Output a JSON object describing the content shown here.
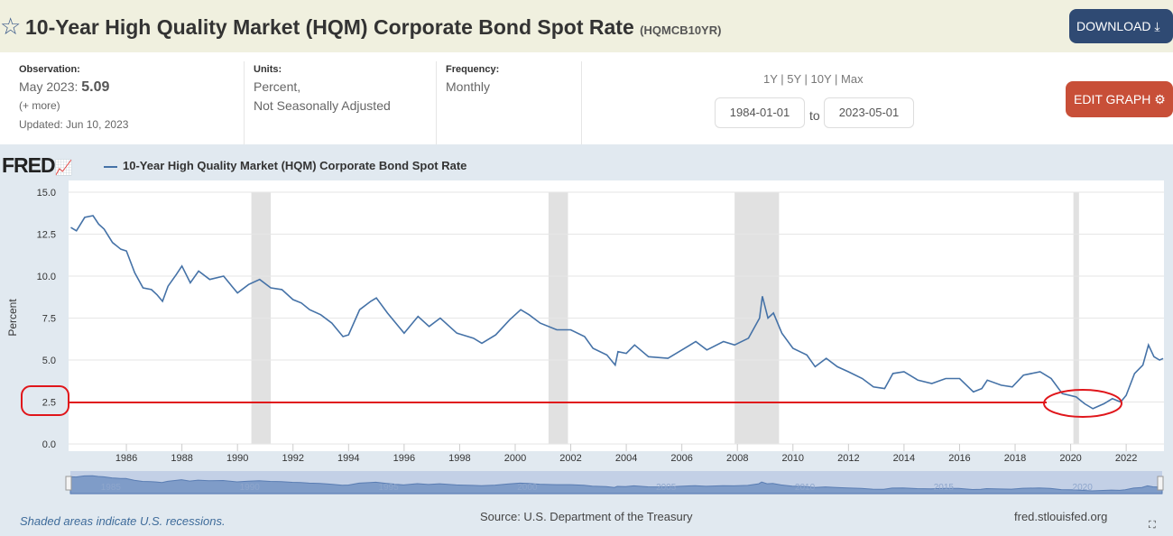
{
  "header": {
    "title": "10-Year High Quality Market (HQM) Corporate Bond Spot Rate",
    "series_id": "(HQMCB10YR)",
    "download": "DOWNLOAD"
  },
  "meta": {
    "observation_label": "Observation:",
    "observation_date": "May 2023:",
    "observation_value": "5.09",
    "more": "(+ more)",
    "updated": "Updated: Jun 10, 2023",
    "units_label": "Units:",
    "units_1": "Percent,",
    "units_2": "Not Seasonally Adjusted",
    "frequency_label": "Frequency:",
    "frequency": "Monthly",
    "ranges": "1Y | 5Y | 10Y | Max",
    "start_date": "1984-01-01",
    "to": "to",
    "end_date": "2023-05-01",
    "edit": "EDIT GRAPH"
  },
  "footer": {
    "note": "Shaded areas indicate U.S. recessions.",
    "source": "Source: U.S. Department of the Treasury",
    "site": "fred.stlouisfed.org"
  },
  "brand": "FRED",
  "colors": {
    "line": "#4572a7",
    "recession": "#e1e1e1",
    "annotation": "#e0161b"
  },
  "chart_data": {
    "type": "line",
    "title": "10-Year High Quality Market (HQM) Corporate Bond Spot Rate",
    "ylabel": "Percent",
    "xlabel": "",
    "ylim": [
      0,
      15
    ],
    "xlim": [
      1984.0,
      2023.33
    ],
    "yticks": [
      "0.0",
      "2.5",
      "5.0",
      "7.5",
      "10.0",
      "12.5",
      "15.0"
    ],
    "xticks": [
      "1986",
      "1988",
      "1990",
      "1992",
      "1994",
      "1996",
      "1998",
      "2000",
      "2002",
      "2004",
      "2006",
      "2008",
      "2010",
      "2012",
      "2014",
      "2016",
      "2018",
      "2020",
      "2022"
    ],
    "navigator_ticks": [
      "1985",
      "1990",
      "1995",
      "2000",
      "2005",
      "2010",
      "2015",
      "2020"
    ],
    "recessions": [
      [
        1990.5,
        1991.2
      ],
      [
        2001.2,
        2001.9
      ],
      [
        2007.9,
        2009.5
      ],
      [
        2020.1,
        2020.3
      ]
    ],
    "annotation_level": 2.47,
    "x": [
      1984.0,
      1984.2,
      1984.5,
      1984.8,
      1985.0,
      1985.2,
      1985.5,
      1985.8,
      1986.0,
      1986.3,
      1986.6,
      1986.9,
      1987.1,
      1987.3,
      1987.5,
      1987.8,
      1988.0,
      1988.3,
      1988.6,
      1989.0,
      1989.5,
      1989.8,
      1990.0,
      1990.4,
      1990.8,
      1991.2,
      1991.6,
      1992.0,
      1992.3,
      1992.6,
      1993.0,
      1993.4,
      1993.8,
      1994.0,
      1994.4,
      1994.8,
      1995.0,
      1995.4,
      1995.9,
      1996.0,
      1996.5,
      1996.9,
      1997.3,
      1997.9,
      1998.5,
      1998.8,
      1999.3,
      1999.8,
      2000.2,
      2000.5,
      2000.9,
      2001.5,
      2002.0,
      2002.5,
      2002.8,
      2003.3,
      2003.6,
      2003.7,
      2004.0,
      2004.3,
      2004.8,
      2005.5,
      2005.9,
      2006.5,
      2006.9,
      2007.5,
      2007.9,
      2008.4,
      2008.8,
      2008.9,
      2009.1,
      2009.3,
      2009.6,
      2010.0,
      2010.5,
      2010.8,
      2011.2,
      2011.6,
      2012.0,
      2012.5,
      2012.9,
      2013.3,
      2013.6,
      2014.0,
      2014.5,
      2015.0,
      2015.5,
      2016.0,
      2016.5,
      2016.8,
      2017.0,
      2017.5,
      2017.9,
      2018.3,
      2018.9,
      2019.3,
      2019.7,
      2020.2,
      2020.5,
      2020.8,
      2021.2,
      2021.5,
      2021.8,
      2022.0,
      2022.3,
      2022.6,
      2022.8,
      2023.0,
      2023.2,
      2023.33
    ],
    "y": [
      12.9,
      12.7,
      13.5,
      13.6,
      13.1,
      12.8,
      12.0,
      11.6,
      11.5,
      10.2,
      9.3,
      9.2,
      8.9,
      8.5,
      9.4,
      10.1,
      10.6,
      9.6,
      10.3,
      9.8,
      10.0,
      9.4,
      9.0,
      9.5,
      9.8,
      9.3,
      9.2,
      8.6,
      8.4,
      8.0,
      7.7,
      7.2,
      6.4,
      6.5,
      8.0,
      8.5,
      8.7,
      7.8,
      6.8,
      6.6,
      7.6,
      7.0,
      7.5,
      6.6,
      6.3,
      6.0,
      6.5,
      7.4,
      8.0,
      7.7,
      7.2,
      6.8,
      6.8,
      6.4,
      5.7,
      5.3,
      4.7,
      5.5,
      5.4,
      5.9,
      5.2,
      5.1,
      5.5,
      6.1,
      5.6,
      6.1,
      5.9,
      6.3,
      7.5,
      8.8,
      7.5,
      7.8,
      6.6,
      5.7,
      5.3,
      4.6,
      5.1,
      4.6,
      4.3,
      3.9,
      3.4,
      3.3,
      4.2,
      4.3,
      3.8,
      3.6,
      3.9,
      3.9,
      3.1,
      3.3,
      3.8,
      3.5,
      3.4,
      4.1,
      4.3,
      3.9,
      3.0,
      2.8,
      2.4,
      2.1,
      2.4,
      2.7,
      2.5,
      2.9,
      4.2,
      4.7,
      5.9,
      5.2,
      5.0,
      5.09
    ]
  }
}
